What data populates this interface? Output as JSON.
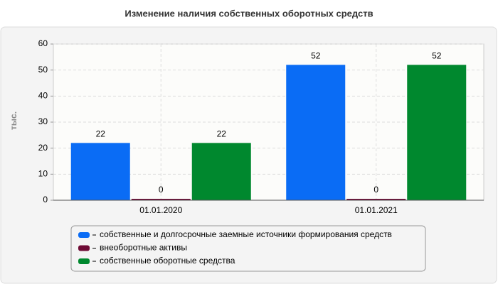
{
  "chart_data": {
    "type": "bar",
    "title": "Изменение наличия собственных оборотных средств",
    "y_label": "тыс.",
    "categories": [
      "01.01.2020",
      "01.01.2021"
    ],
    "series": [
      {
        "name": "собственные и долгосрочные заемные источники формирования средств",
        "color": "#0a6cf5",
        "values": [
          22,
          52
        ]
      },
      {
        "name": "внеоборотные активы",
        "color": "#6e0b35",
        "values": [
          0,
          0
        ]
      },
      {
        "name": "собственные оборотные средства",
        "color": "#00882e",
        "values": [
          22,
          52
        ]
      }
    ],
    "ylim": [
      0,
      60
    ],
    "yticks": [
      0,
      10,
      20,
      30,
      40,
      50,
      60
    ],
    "grid": true
  }
}
